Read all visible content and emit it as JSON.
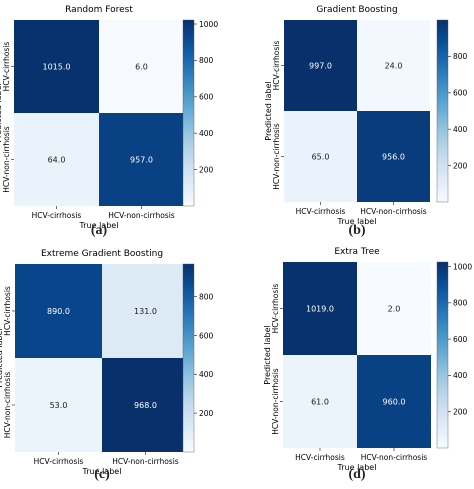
{
  "figure": {
    "panels": [
      {
        "caption": "(a)"
      },
      {
        "caption": "(b)"
      },
      {
        "caption": "(c)"
      },
      {
        "caption": "(d)"
      }
    ]
  },
  "chart_data": [
    {
      "type": "heatmap",
      "title": "Random Forest",
      "xlabel": "True label",
      "ylabel": "Predicted label",
      "x_categories": [
        "HCV-cirrhosis",
        "HCV-non-cirrhosis"
      ],
      "y_categories": [
        "HCV-cirrhosis",
        "HCV-non-cirrhosis"
      ],
      "values": [
        [
          1015,
          6
        ],
        [
          64,
          957
        ]
      ],
      "value_labels": [
        [
          "1015.0",
          "6.0"
        ],
        [
          "64.0",
          "957.0"
        ]
      ],
      "colorbar": {
        "range": [
          0,
          1022
        ],
        "ticks": [
          200,
          400,
          600,
          800,
          1000
        ],
        "colormap": "Blues"
      }
    },
    {
      "type": "heatmap",
      "title": "Gradient Boosting",
      "xlabel": "True label",
      "ylabel": "Predicted label",
      "x_categories": [
        "HCV-cirrhosis",
        "HCV-non-cirrhosis"
      ],
      "y_categories": [
        "HCV-cirrhosis",
        "HCV-non-cirrhosis"
      ],
      "values": [
        [
          997,
          24
        ],
        [
          65,
          956
        ]
      ],
      "value_labels": [
        [
          "997.0",
          "24.0"
        ],
        [
          "65.0",
          "956.0"
        ]
      ],
      "colorbar": {
        "range": [
          0,
          1000
        ],
        "ticks": [
          200,
          400,
          600,
          800
        ],
        "colormap": "Blues"
      }
    },
    {
      "type": "heatmap",
      "title": "Extreme Gradient Boosting",
      "xlabel": "True label",
      "ylabel": "Predicted label",
      "x_categories": [
        "HCV-cirrhosis",
        "HCV-non-cirrhosis"
      ],
      "y_categories": [
        "HCV-cirrhosis",
        "HCV-non-cirrhosis"
      ],
      "values": [
        [
          890,
          131
        ],
        [
          53,
          968
        ]
      ],
      "value_labels": [
        [
          "890.0",
          "131.0"
        ],
        [
          "53.0",
          "968.0"
        ]
      ],
      "colorbar": {
        "range": [
          0,
          968
        ],
        "ticks": [
          200,
          400,
          600,
          800
        ],
        "colormap": "Blues"
      }
    },
    {
      "type": "heatmap",
      "title": "Extra Tree",
      "xlabel": "True label",
      "ylabel": "Predicted label",
      "x_categories": [
        "HCV-cirrhosis",
        "HCV-non-cirrhosis"
      ],
      "y_categories": [
        "HCV-cirrhosis",
        "HCV-non-cirrhosis"
      ],
      "values": [
        [
          1019,
          2
        ],
        [
          61,
          960
        ]
      ],
      "value_labels": [
        [
          "1019.0",
          "2.0"
        ],
        [
          "61.0",
          "960.0"
        ]
      ],
      "colorbar": {
        "range": [
          0,
          1025
        ],
        "ticks": [
          200,
          400,
          600,
          800,
          1000
        ],
        "colormap": "Blues"
      }
    }
  ]
}
